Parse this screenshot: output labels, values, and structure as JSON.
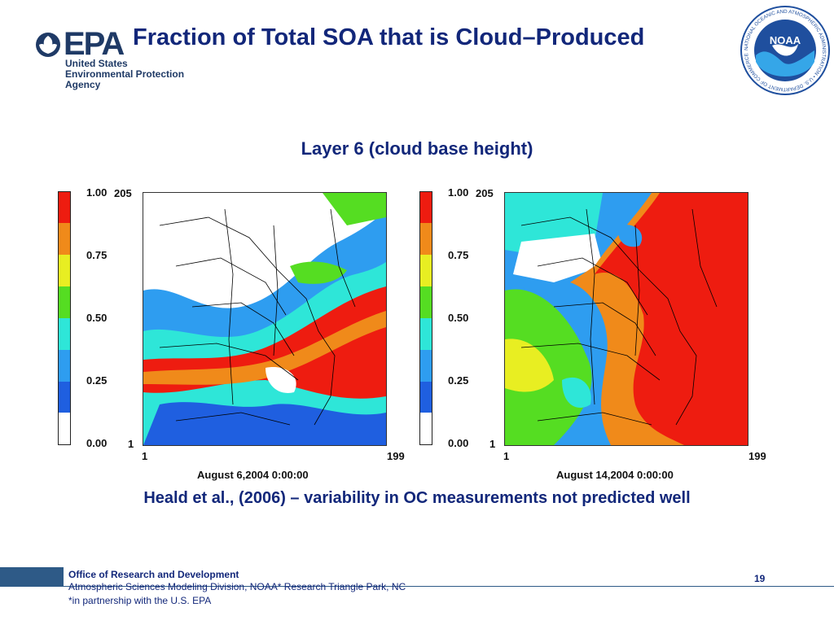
{
  "header": {
    "title": "Fraction of Total SOA that is Cloud–Produced",
    "epa_logo": {
      "wordmark": "EPA",
      "line1": "United States",
      "line2": "Environmental Protection",
      "line3": "Agency"
    },
    "noaa_logo": {
      "center_text": "NOAA",
      "ring_text": "NATIONAL OCEANIC AND ATMOSPHERIC ADMINISTRATION • U.S. DEPARTMENT OF COMMERCE"
    }
  },
  "subtitle": "Layer 6 (cloud base height)",
  "colors": {
    "scale": [
      "#ffffff",
      "#1f5fe0",
      "#2e9df0",
      "#2ee6d8",
      "#55dd22",
      "#e8ee22",
      "#f08a1a",
      "#ee1c10"
    ],
    "title_blue": "#12277a",
    "footer_blue": "#2e5a87"
  },
  "left_panel": {
    "colorbar_ticks": [
      "1.00",
      "0.75",
      "0.50",
      "0.25",
      "0.00"
    ],
    "y_top": "205",
    "y_bottom": "1",
    "x_left": "1",
    "x_right": "199",
    "date": "August 6,2004 0:00:00"
  },
  "right_panel": {
    "colorbar_ticks": [
      "1.00",
      "0.75",
      "0.50",
      "0.25",
      "0.00"
    ],
    "y_top": "205",
    "y_bottom": "1",
    "x_left": "1",
    "x_right": "199",
    "date": "August 14,2004 0:00:00"
  },
  "caption": "Heald et al., (2006) – variability in OC measurements not predicted well",
  "footer": {
    "line1": "Office of Research and Development",
    "line2": "Atmospheric Sciences Modeling Division, NOAA* Research Triangle Park, NC",
    "line3": "*in partnership with the U.S. EPA",
    "page_number": "19"
  }
}
